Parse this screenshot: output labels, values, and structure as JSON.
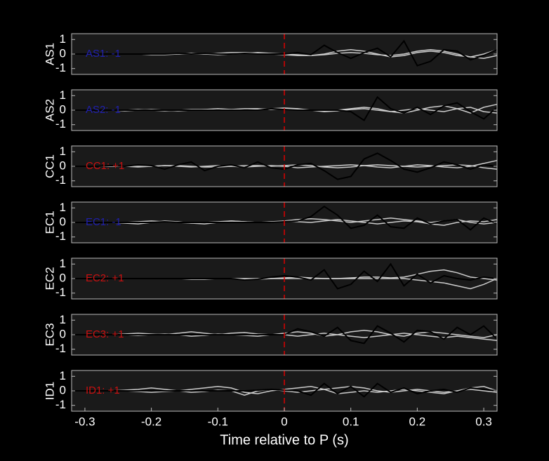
{
  "chart_data": [
    {
      "type": "line",
      "ylabel": "AS1",
      "annotation": "AS1: -1",
      "annotation_color": "#2020b0",
      "vline": 0,
      "vline_color": "#dd0000",
      "xlim": [
        -0.32,
        0.32
      ],
      "ylim": [
        -1.4,
        1.4
      ],
      "yticks": [
        -1,
        0,
        1
      ],
      "x": [
        -0.32,
        -0.3,
        -0.28,
        -0.26,
        -0.24,
        -0.22,
        -0.2,
        -0.18,
        -0.16,
        -0.14,
        -0.12,
        -0.1,
        -0.08,
        -0.06,
        -0.04,
        -0.02,
        0,
        0.02,
        0.04,
        0.06,
        0.08,
        0.1,
        0.12,
        0.14,
        0.16,
        0.18,
        0.2,
        0.22,
        0.24,
        0.26,
        0.28,
        0.3,
        0.32
      ],
      "series": [
        {
          "color": "#cccccc",
          "values": [
            0,
            0,
            0,
            0,
            0,
            0,
            0,
            0,
            0,
            0,
            0,
            0.05,
            0.1,
            0.1,
            0.05,
            0,
            -0.05,
            -0.1,
            -0.1,
            0,
            0.2,
            0.3,
            0.2,
            0,
            -0.2,
            -0.1,
            0.1,
            0.2,
            0.1,
            -0.1,
            -0.2,
            0,
            0.3
          ]
        },
        {
          "color": "#cccccc",
          "values": [
            0,
            0,
            0,
            0,
            0,
            0,
            -0.05,
            -0.05,
            0,
            0.05,
            0,
            -0.05,
            0,
            0.05,
            0.1,
            0.05,
            0,
            -0.05,
            -0.1,
            -0.05,
            0.05,
            0.1,
            0.05,
            -0.05,
            -0.1,
            0,
            0.2,
            0.3,
            0.2,
            0,
            -0.2,
            -0.3,
            -0.1
          ]
        },
        {
          "color": "#000000",
          "values": [
            0,
            0,
            0,
            0,
            0,
            0,
            0,
            0,
            0.05,
            0,
            0.05,
            0,
            0,
            0.05,
            0,
            0,
            0,
            0.1,
            -0.05,
            0.6,
            0.1,
            -0.3,
            0.1,
            0.4,
            -0.2,
            0.9,
            -0.8,
            -0.5,
            0.3,
            0.2,
            -0.4,
            -0.1,
            0.3
          ]
        }
      ]
    },
    {
      "type": "line",
      "ylabel": "AS2",
      "annotation": "AS2: -1",
      "annotation_color": "#2020b0",
      "vline": 0,
      "vline_color": "#dd0000",
      "xlim": [
        -0.32,
        0.32
      ],
      "ylim": [
        -1.4,
        1.4
      ],
      "yticks": [
        -1,
        0,
        1
      ],
      "x": [
        -0.32,
        -0.3,
        -0.28,
        -0.26,
        -0.24,
        -0.22,
        -0.2,
        -0.18,
        -0.16,
        -0.14,
        -0.12,
        -0.1,
        -0.08,
        -0.06,
        -0.04,
        -0.02,
        0,
        0.02,
        0.04,
        0.06,
        0.08,
        0.1,
        0.12,
        0.14,
        0.16,
        0.18,
        0.2,
        0.22,
        0.24,
        0.26,
        0.28,
        0.3,
        0.32
      ],
      "series": [
        {
          "color": "#cccccc",
          "values": [
            0,
            0,
            0,
            0,
            0,
            0.05,
            0,
            -0.05,
            0,
            0.05,
            0.05,
            0,
            0.05,
            0.1,
            0.1,
            0.05,
            0.1,
            0.05,
            0,
            -0.05,
            0,
            0.1,
            0.2,
            0.1,
            -0.1,
            -0.2,
            0,
            0.2,
            0.3,
            0.1,
            -0.2,
            0.2,
            0.4
          ]
        },
        {
          "color": "#cccccc",
          "values": [
            0,
            0,
            0,
            0,
            -0.05,
            0,
            0.05,
            0,
            -0.05,
            0,
            0.05,
            0.1,
            0.05,
            0,
            0.05,
            0.1,
            0.15,
            0.1,
            0,
            -0.1,
            -0.05,
            0.05,
            0.1,
            0,
            -0.1,
            0,
            0.1,
            0,
            -0.1,
            0.1,
            0.2,
            -0.1,
            -0.2
          ]
        },
        {
          "color": "#000000",
          "values": [
            0,
            0,
            0,
            0,
            0,
            0,
            0,
            0,
            0,
            0,
            0,
            0,
            0,
            0,
            0,
            0.1,
            0.05,
            0,
            0,
            0,
            0,
            -0.1,
            -0.7,
            0.9,
            0.1,
            -0.2,
            0.2,
            -0.3,
            0.3,
            0.5,
            -0.1,
            -0.6,
            0.2
          ]
        }
      ]
    },
    {
      "type": "line",
      "ylabel": "CC1",
      "annotation": "CC1: +1",
      "annotation_color": "#cc1010",
      "vline": 0,
      "vline_color": "#dd0000",
      "xlim": [
        -0.32,
        0.32
      ],
      "ylim": [
        -1.4,
        1.4
      ],
      "yticks": [
        -1,
        0,
        1
      ],
      "x": [
        -0.32,
        -0.3,
        -0.28,
        -0.26,
        -0.24,
        -0.22,
        -0.2,
        -0.18,
        -0.16,
        -0.14,
        -0.12,
        -0.1,
        -0.08,
        -0.06,
        -0.04,
        -0.02,
        0,
        0.02,
        0.04,
        0.06,
        0.08,
        0.1,
        0.12,
        0.14,
        0.16,
        0.18,
        0.2,
        0.22,
        0.24,
        0.26,
        0.28,
        0.3,
        0.32
      ],
      "series": [
        {
          "color": "#cccccc",
          "values": [
            0,
            0,
            0,
            0,
            0,
            0,
            0,
            0.05,
            0,
            -0.05,
            0,
            0.05,
            0,
            -0.05,
            0,
            0.05,
            0,
            -0.1,
            -0.05,
            0,
            0.05,
            0.1,
            0.05,
            -0.05,
            -0.1,
            0,
            0.1,
            0.05,
            -0.05,
            -0.1,
            0,
            0.2,
            0.4
          ]
        },
        {
          "color": "#cccccc",
          "values": [
            0,
            0,
            0,
            0,
            0,
            -0.05,
            0,
            0.05,
            0.05,
            0,
            -0.05,
            -0.05,
            0,
            0.05,
            0.05,
            0,
            0.05,
            0.1,
            0.05,
            -0.05,
            -0.1,
            -0.05,
            0.05,
            0.1,
            0.05,
            0,
            -0.05,
            0,
            0.05,
            0.1,
            0.05,
            -0.1,
            -0.2
          ]
        },
        {
          "color": "#000000",
          "values": [
            0,
            0,
            0,
            0.05,
            0,
            0.1,
            0.05,
            -0.2,
            0.1,
            0.3,
            -0.3,
            0,
            0.1,
            -0.1,
            0.3,
            -0.1,
            -0.2,
            0.1,
            0.2,
            -0.3,
            -0.9,
            -0.7,
            0.5,
            0.9,
            0.4,
            -0.2,
            -0.4,
            -0.1,
            0.3,
            0.1,
            -0.2,
            0.1,
            0
          ]
        }
      ]
    },
    {
      "type": "line",
      "ylabel": "EC1",
      "annotation": "EC1: -1",
      "annotation_color": "#2020b0",
      "vline": 0,
      "vline_color": "#dd0000",
      "xlim": [
        -0.32,
        0.32
      ],
      "ylim": [
        -1.4,
        1.4
      ],
      "yticks": [
        -1,
        0,
        1
      ],
      "x": [
        -0.32,
        -0.3,
        -0.28,
        -0.26,
        -0.24,
        -0.22,
        -0.2,
        -0.18,
        -0.16,
        -0.14,
        -0.12,
        -0.1,
        -0.08,
        -0.06,
        -0.04,
        -0.02,
        0,
        0.02,
        0.04,
        0.06,
        0.08,
        0.1,
        0.12,
        0.14,
        0.16,
        0.18,
        0.2,
        0.22,
        0.24,
        0.26,
        0.28,
        0.3,
        0.32
      ],
      "series": [
        {
          "color": "#cccccc",
          "values": [
            0,
            0,
            0,
            0,
            0,
            0.05,
            0.1,
            0.05,
            0,
            -0.05,
            0,
            0.05,
            0.1,
            0.05,
            0,
            0.05,
            0.1,
            0.2,
            0.25,
            0.2,
            0.1,
            0,
            0.1,
            0.2,
            0.3,
            0.2,
            0.1,
            0,
            0.1,
            0.2,
            0,
            -0.1,
            0
          ]
        },
        {
          "color": "#cccccc",
          "values": [
            0,
            0,
            0,
            0,
            -0.05,
            -0.1,
            0,
            0.1,
            0.05,
            -0.05,
            -0.1,
            0,
            0.1,
            0.05,
            0,
            0,
            0.1,
            0.05,
            0,
            0.1,
            0.2,
            0.1,
            0,
            -0.1,
            0,
            0.1,
            0.05,
            -0.1,
            -0.2,
            0,
            0.1,
            0.05,
            0.2
          ]
        },
        {
          "color": "#000000",
          "values": [
            0,
            0,
            0,
            0,
            0,
            0,
            0,
            0.05,
            0,
            0,
            0,
            0,
            0,
            0,
            0,
            0,
            0.05,
            0.1,
            0.4,
            1.1,
            0.5,
            -0.4,
            -0.2,
            0.5,
            -0.3,
            -0.4,
            0.3,
            -0.1,
            0.1,
            0.2,
            -0.5,
            0.3,
            -0.1
          ]
        }
      ]
    },
    {
      "type": "line",
      "ylabel": "EC2",
      "annotation": "EC2: +1",
      "annotation_color": "#cc1010",
      "vline": 0,
      "vline_color": "#dd0000",
      "xlim": [
        -0.32,
        0.32
      ],
      "ylim": [
        -1.4,
        1.4
      ],
      "yticks": [
        -1,
        0,
        1
      ],
      "x": [
        -0.32,
        -0.3,
        -0.28,
        -0.26,
        -0.24,
        -0.22,
        -0.2,
        -0.18,
        -0.16,
        -0.14,
        -0.12,
        -0.1,
        -0.08,
        -0.06,
        -0.04,
        -0.02,
        0,
        0.02,
        0.04,
        0.06,
        0.08,
        0.1,
        0.12,
        0.14,
        0.16,
        0.18,
        0.2,
        0.22,
        0.24,
        0.26,
        0.28,
        0.3,
        0.32
      ],
      "series": [
        {
          "color": "#cccccc",
          "values": [
            0,
            0,
            0,
            0,
            0,
            0,
            0,
            0,
            0,
            -0.05,
            -0.05,
            0,
            0,
            -0.05,
            -0.05,
            0,
            0.05,
            0.1,
            0.05,
            0,
            0,
            0.05,
            0.1,
            0.1,
            0.05,
            0.1,
            0.3,
            0.5,
            0.6,
            0.4,
            0.1,
            0,
            -0.1
          ]
        },
        {
          "color": "#cccccc",
          "values": [
            0,
            0,
            0,
            0,
            0,
            0,
            0,
            0,
            0,
            0,
            0,
            0,
            0,
            0,
            0,
            0,
            0,
            0,
            0,
            0,
            0,
            0,
            0,
            0,
            0,
            0,
            -0.1,
            -0.2,
            -0.3,
            -0.5,
            -0.7,
            -0.4,
            0
          ]
        },
        {
          "color": "#000000",
          "values": [
            0,
            0,
            0,
            0,
            0,
            0,
            0,
            0,
            0,
            0,
            0,
            0,
            0,
            -0.1,
            -0.05,
            0.1,
            0.2,
            0.1,
            -0.1,
            0.6,
            -0.7,
            -0.4,
            0.5,
            -0.2,
            1.0,
            -0.5,
            0.3,
            -0.3,
            0.2,
            0,
            -0.1,
            0.1,
            0
          ]
        }
      ]
    },
    {
      "type": "line",
      "ylabel": "EC3",
      "annotation": "EC3: +1",
      "annotation_color": "#cc1010",
      "vline": 0,
      "vline_color": "#dd0000",
      "xlim": [
        -0.32,
        0.32
      ],
      "ylim": [
        -1.4,
        1.4
      ],
      "yticks": [
        -1,
        0,
        1
      ],
      "x": [
        -0.32,
        -0.3,
        -0.28,
        -0.26,
        -0.24,
        -0.22,
        -0.2,
        -0.18,
        -0.16,
        -0.14,
        -0.12,
        -0.1,
        -0.08,
        -0.06,
        -0.04,
        -0.02,
        0,
        0.02,
        0.04,
        0.06,
        0.08,
        0.1,
        0.12,
        0.14,
        0.16,
        0.18,
        0.2,
        0.22,
        0.24,
        0.26,
        0.28,
        0.3,
        0.32
      ],
      "series": [
        {
          "color": "#cccccc",
          "values": [
            0,
            0,
            0,
            0,
            0.05,
            0.1,
            0.05,
            0,
            0.1,
            0.2,
            0.1,
            0,
            0.1,
            0.15,
            0.05,
            0,
            0.1,
            0.2,
            0.1,
            -0.1,
            0,
            0.2,
            0.3,
            0.2,
            0,
            -0.1,
            0.1,
            0.2,
            0.1,
            0,
            -0.1,
            -0.2,
            0
          ]
        },
        {
          "color": "#cccccc",
          "values": [
            0,
            0,
            0,
            0,
            0,
            -0.05,
            0,
            0.05,
            0,
            -0.1,
            -0.05,
            0.05,
            0,
            -0.05,
            -0.1,
            0,
            0,
            -0.1,
            0,
            0.1,
            0,
            -0.1,
            -0.2,
            -0.1,
            0,
            0.1,
            0,
            -0.1,
            -0.2,
            -0.1,
            -0.2,
            -0.3,
            -0.4
          ]
        },
        {
          "color": "#000000",
          "values": [
            0,
            0,
            0,
            0,
            0,
            0,
            0,
            0,
            0,
            0,
            0,
            0,
            0,
            0,
            0,
            0,
            0,
            0.4,
            0.2,
            -0.1,
            0.5,
            -0.4,
            -0.6,
            0.6,
            0.1,
            -0.5,
            0.3,
            0.2,
            -0.3,
            0.5,
            0,
            0.6,
            -0.3
          ]
        }
      ]
    },
    {
      "type": "line",
      "ylabel": "ID1",
      "annotation": "ID1: +1",
      "annotation_color": "#cc1010",
      "vline": 0,
      "vline_color": "#dd0000",
      "xlim": [
        -0.32,
        0.32
      ],
      "ylim": [
        -1.4,
        1.4
      ],
      "yticks": [
        -1,
        0,
        1
      ],
      "xticks": [
        -0.3,
        -0.2,
        -0.1,
        0,
        0.1,
        0.2,
        0.3
      ],
      "xlabel": "Time relative to P (s)",
      "x": [
        -0.32,
        -0.3,
        -0.28,
        -0.26,
        -0.24,
        -0.22,
        -0.2,
        -0.18,
        -0.16,
        -0.14,
        -0.12,
        -0.1,
        -0.08,
        -0.06,
        -0.04,
        -0.02,
        0,
        0.02,
        0.04,
        0.06,
        0.08,
        0.1,
        0.12,
        0.14,
        0.16,
        0.18,
        0.2,
        0.22,
        0.24,
        0.26,
        0.28,
        0.3,
        0.32
      ],
      "series": [
        {
          "color": "#cccccc",
          "values": [
            0,
            0,
            0,
            0,
            0.05,
            0.1,
            0.2,
            0.1,
            0,
            0.1,
            0.2,
            0.3,
            0.2,
            -0.1,
            -0.2,
            0,
            0.1,
            0.2,
            0.3,
            0.1,
            0.2,
            0.3,
            0.2,
            0,
            -0.1,
            0,
            0.1,
            0,
            -0.1,
            0,
            0.2,
            0.3,
            0
          ]
        },
        {
          "color": "#cccccc",
          "values": [
            0,
            0,
            0,
            0,
            0,
            -0.05,
            -0.1,
            -0.05,
            0,
            -0.1,
            -0.05,
            0.05,
            0,
            -0.3,
            0,
            0.1,
            0,
            -0.1,
            0,
            0.1,
            -0.2,
            -0.1,
            0,
            -0.1,
            0,
            0.1,
            0,
            -0.1,
            -0.2,
            0,
            0.1,
            0,
            -0.1
          ]
        },
        {
          "color": "#000000",
          "values": [
            0,
            0,
            0,
            0,
            0,
            0,
            0,
            0,
            0,
            0,
            0,
            0,
            0,
            0,
            0.05,
            0.1,
            0.05,
            0,
            -0.3,
            0.5,
            -0.2,
            0.3,
            -0.4,
            0.5,
            -0.1,
            0.2,
            -0.2,
            0,
            0.1,
            -0.1,
            0.2,
            0.1,
            0
          ]
        }
      ]
    }
  ]
}
